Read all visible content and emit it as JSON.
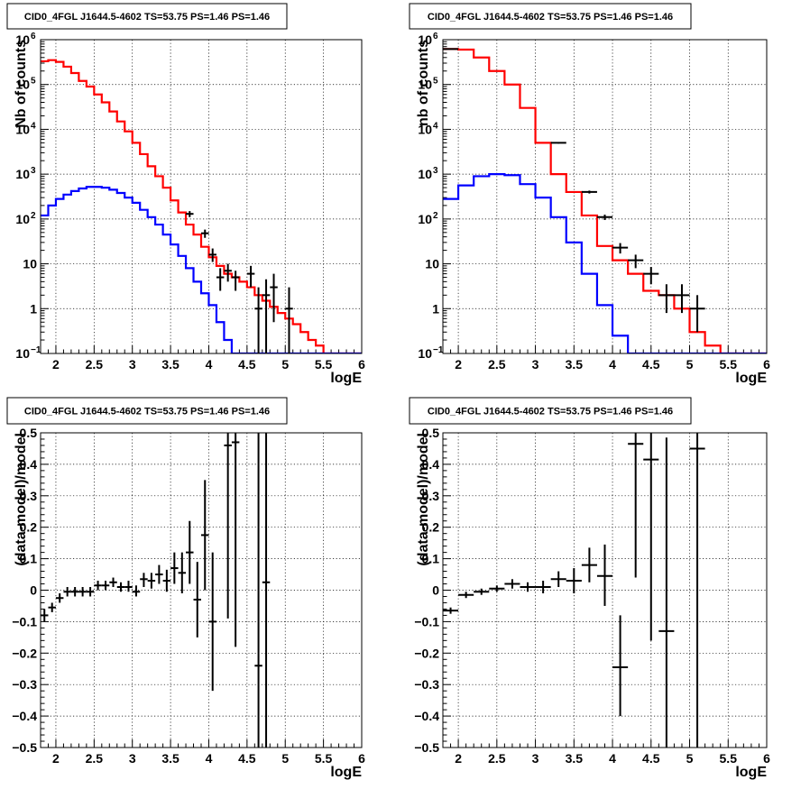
{
  "chart_data": [
    {
      "id": "p1",
      "type": "histogram",
      "title": "CID0_4FGL J1644.5-4602 TS=53.75 PS=1.46 PS=1.46",
      "xlabel": "logE",
      "ylabel": "Nb of counts",
      "xlim": [
        1.8,
        6.0
      ],
      "ylim": [
        0.1,
        1000000
      ],
      "yscale": "log",
      "grid": true,
      "x_ticks": [
        2,
        2.5,
        3,
        3.5,
        4,
        4.5,
        5,
        5.5,
        6
      ],
      "x_tick_labels": [
        "2",
        "2.5",
        "3",
        "3.5",
        "4",
        "4.5",
        "5",
        "5.5",
        "6"
      ],
      "y_ticks": [
        0.1,
        1,
        10,
        100,
        1000,
        10000,
        100000,
        1000000
      ],
      "y_tick_labels": [
        {
          "base": "10",
          "exp": "−1"
        },
        {
          "base": "1",
          "exp": ""
        },
        {
          "base": "10",
          "exp": ""
        },
        {
          "base": "10",
          "exp": "2"
        },
        {
          "base": "10",
          "exp": "3"
        },
        {
          "base": "10",
          "exp": "4"
        },
        {
          "base": "10",
          "exp": "5"
        },
        {
          "base": "10",
          "exp": "6"
        }
      ],
      "bin_edges": [
        1.8,
        1.9,
        2.0,
        2.1,
        2.2,
        2.3,
        2.4,
        2.5,
        2.6,
        2.7,
        2.8,
        2.9,
        3.0,
        3.1,
        3.2,
        3.3,
        3.4,
        3.5,
        3.6,
        3.7,
        3.8,
        3.9,
        4.0,
        4.1,
        4.2,
        4.3,
        4.4,
        4.5,
        4.6,
        4.7,
        4.8,
        4.9,
        5.0,
        5.1,
        5.2,
        5.3,
        5.4,
        5.5,
        5.6,
        5.7,
        5.8,
        5.9,
        6.0
      ],
      "series": [
        {
          "name": "",
          "color": "#ff0000",
          "kind": "step",
          "values": [
            330000,
            350000,
            320000,
            250000,
            180000,
            120000,
            90000,
            60000,
            40000,
            25000,
            15000,
            9000,
            5000,
            2800,
            1500,
            900,
            500,
            260,
            140,
            75,
            45,
            24,
            14,
            9,
            6,
            5,
            4,
            3,
            2,
            1.5,
            1.1,
            0.8,
            0.6,
            0.45,
            0.3,
            0.2,
            0.15,
            0.1,
            0.1,
            0.1,
            0.1,
            0.1
          ]
        },
        {
          "name": "",
          "color": "#0000ff",
          "kind": "step",
          "values": [
            120,
            200,
            280,
            350,
            420,
            480,
            520,
            520,
            500,
            450,
            380,
            300,
            230,
            160,
            110,
            75,
            45,
            27,
            15,
            8,
            4,
            2.2,
            1.2,
            0.5,
            0.2,
            0.1,
            0.1,
            0.1,
            0.1,
            0.1,
            0.1,
            0.1,
            0.1,
            0.1,
            0.1,
            0.1,
            0.1,
            0.1,
            0.1,
            0.1,
            0.1,
            0.1
          ]
        }
      ],
      "points": [
        {
          "x": 3.75,
          "y": 130,
          "dx": 0.05,
          "yl": 110,
          "yh": 150
        },
        {
          "x": 3.95,
          "y": 48,
          "dx": 0.05,
          "yl": 38,
          "yh": 58
        },
        {
          "x": 4.05,
          "y": 16,
          "dx": 0.05,
          "yl": 11,
          "yh": 22
        },
        {
          "x": 4.15,
          "y": 5,
          "dx": 0.05,
          "yl": 2.5,
          "yh": 8
        },
        {
          "x": 4.25,
          "y": 7,
          "dx": 0.05,
          "yl": 4,
          "yh": 10
        },
        {
          "x": 4.35,
          "y": 5,
          "dx": 0.05,
          "yl": 2.5,
          "yh": 7
        },
        {
          "x": 4.55,
          "y": 6,
          "dx": 0.05,
          "yl": 3,
          "yh": 9
        },
        {
          "x": 4.65,
          "y": 1,
          "dx": 0.05,
          "yl": 0.1,
          "yh": 3
        },
        {
          "x": 4.75,
          "y": 2,
          "dx": 0.05,
          "yl": 0.1,
          "yh": 4.5
        },
        {
          "x": 4.85,
          "y": 3,
          "dx": 0.05,
          "yl": 0.5,
          "yh": 6
        },
        {
          "x": 5.05,
          "y": 1,
          "dx": 0.05,
          "yl": 0.1,
          "yh": 3
        }
      ]
    },
    {
      "id": "p2",
      "type": "histogram",
      "title": "CID0_4FGL J1644.5-4602 TS=53.75 PS=1.46 PS=1.46",
      "xlabel": "logE",
      "ylabel": "nb of counts",
      "xlim": [
        1.8,
        6.0
      ],
      "ylim": [
        0.1,
        1000000
      ],
      "yscale": "log",
      "grid": true,
      "x_ticks": [
        2,
        2.5,
        3,
        3.5,
        4,
        4.5,
        5,
        5.5,
        6
      ],
      "x_tick_labels": [
        "2",
        "2.5",
        "3",
        "3.5",
        "4",
        "4.5",
        "5",
        "5.5",
        "6"
      ],
      "y_ticks": [
        0.1,
        1,
        10,
        100,
        1000,
        10000,
        100000,
        1000000
      ],
      "y_tick_labels": [
        {
          "base": "10",
          "exp": "−1"
        },
        {
          "base": "1",
          "exp": ""
        },
        {
          "base": "10",
          "exp": ""
        },
        {
          "base": "10",
          "exp": "2"
        },
        {
          "base": "10",
          "exp": "3"
        },
        {
          "base": "10",
          "exp": "4"
        },
        {
          "base": "10",
          "exp": "5"
        },
        {
          "base": "10",
          "exp": "6"
        }
      ],
      "bin_edges": [
        1.8,
        2.0,
        2.2,
        2.4,
        2.6,
        2.8,
        3.0,
        3.2,
        3.4,
        3.6,
        3.8,
        4.0,
        4.2,
        4.4,
        4.6,
        4.8,
        5.0,
        5.2,
        5.4,
        5.6,
        5.8,
        6.0
      ],
      "series": [
        {
          "name": "",
          "color": "#ff0000",
          "kind": "step",
          "values": [
            620000,
            600000,
            400000,
            200000,
            100000,
            30000,
            5000,
            1000,
            400,
            120,
            25,
            12,
            6,
            2.5,
            2,
            1,
            0.3,
            0.15,
            0.1,
            0.1,
            0.1
          ]
        },
        {
          "name": "",
          "color": "#0000ff",
          "kind": "step",
          "values": [
            280,
            560,
            900,
            1000,
            950,
            600,
            300,
            110,
            30,
            6,
            1.2,
            0.25,
            0.1,
            0.1,
            0.1,
            0.1,
            0.1,
            0.1,
            0.1,
            0.1,
            0.1
          ]
        }
      ],
      "points": [
        {
          "x": 1.9,
          "y": 620000,
          "dx": 0.1,
          "yl": 610000,
          "yh": 630000
        },
        {
          "x": 3.3,
          "y": 5000,
          "dx": 0.1,
          "yl": 4800,
          "yh": 5200
        },
        {
          "x": 3.7,
          "y": 400,
          "dx": 0.1,
          "yl": 370,
          "yh": 430
        },
        {
          "x": 3.9,
          "y": 110,
          "dx": 0.1,
          "yl": 95,
          "yh": 125
        },
        {
          "x": 4.1,
          "y": 23,
          "dx": 0.1,
          "yl": 17,
          "yh": 29
        },
        {
          "x": 4.3,
          "y": 12,
          "dx": 0.1,
          "yl": 8,
          "yh": 16
        },
        {
          "x": 4.5,
          "y": 6,
          "dx": 0.1,
          "yl": 3.5,
          "yh": 8.5
        },
        {
          "x": 4.7,
          "y": 2,
          "dx": 0.1,
          "yl": 0.8,
          "yh": 3.5
        },
        {
          "x": 4.9,
          "y": 2,
          "dx": 0.1,
          "yl": 0.8,
          "yh": 3.5
        },
        {
          "x": 5.1,
          "y": 1,
          "dx": 0.1,
          "yl": 0.3,
          "yh": 2
        }
      ]
    },
    {
      "id": "p3",
      "type": "scatter",
      "title": "CID0_4FGL J1644.5-4602 TS=53.75 PS=1.46 PS=1.46",
      "xlabel": "logE",
      "ylabel": "(data-model)/model",
      "xlim": [
        1.8,
        6.0
      ],
      "ylim": [
        -0.5,
        0.5
      ],
      "yscale": "linear",
      "grid": true,
      "x_ticks": [
        2,
        2.5,
        3,
        3.5,
        4,
        4.5,
        5,
        5.5,
        6
      ],
      "x_tick_labels": [
        "2",
        "2.5",
        "3",
        "3.5",
        "4",
        "4.5",
        "5",
        "5.5",
        "6"
      ],
      "y_ticks": [
        -0.5,
        -0.4,
        -0.3,
        -0.2,
        -0.1,
        0,
        0.1,
        0.2,
        0.3,
        0.4,
        0.5
      ],
      "y_tick_labels": [
        "−0.5",
        "−0.4",
        "−0.3",
        "−0.2",
        "−0.1",
        "0",
        "0.1",
        "0.2",
        "0.3",
        "0.4",
        "0.5"
      ],
      "points": [
        {
          "x": 1.85,
          "y": -0.08,
          "dx": 0.05,
          "yl": -0.1,
          "yh": -0.06
        },
        {
          "x": 1.95,
          "y": -0.055,
          "dx": 0.05,
          "yl": -0.07,
          "yh": -0.04
        },
        {
          "x": 2.05,
          "y": -0.025,
          "dx": 0.05,
          "yl": -0.04,
          "yh": -0.01
        },
        {
          "x": 2.15,
          "y": -0.005,
          "dx": 0.05,
          "yl": -0.02,
          "yh": 0.01
        },
        {
          "x": 2.25,
          "y": -0.005,
          "dx": 0.05,
          "yl": -0.02,
          "yh": 0.01
        },
        {
          "x": 2.35,
          "y": -0.005,
          "dx": 0.05,
          "yl": -0.02,
          "yh": 0.01
        },
        {
          "x": 2.45,
          "y": -0.005,
          "dx": 0.05,
          "yl": -0.02,
          "yh": 0.01
        },
        {
          "x": 2.55,
          "y": 0.015,
          "dx": 0.05,
          "yl": 0.0,
          "yh": 0.03
        },
        {
          "x": 2.65,
          "y": 0.015,
          "dx": 0.05,
          "yl": 0.0,
          "yh": 0.03
        },
        {
          "x": 2.75,
          "y": 0.025,
          "dx": 0.05,
          "yl": 0.01,
          "yh": 0.04
        },
        {
          "x": 2.85,
          "y": 0.01,
          "dx": 0.05,
          "yl": -0.005,
          "yh": 0.025
        },
        {
          "x": 2.95,
          "y": 0.01,
          "dx": 0.05,
          "yl": -0.005,
          "yh": 0.03
        },
        {
          "x": 3.05,
          "y": -0.005,
          "dx": 0.05,
          "yl": -0.02,
          "yh": 0.015
        },
        {
          "x": 3.15,
          "y": 0.035,
          "dx": 0.05,
          "yl": 0.01,
          "yh": 0.055
        },
        {
          "x": 3.25,
          "y": 0.03,
          "dx": 0.05,
          "yl": 0.005,
          "yh": 0.055
        },
        {
          "x": 3.35,
          "y": 0.05,
          "dx": 0.05,
          "yl": 0.02,
          "yh": 0.08
        },
        {
          "x": 3.45,
          "y": 0.03,
          "dx": 0.05,
          "yl": -0.005,
          "yh": 0.065
        },
        {
          "x": 3.55,
          "y": 0.07,
          "dx": 0.05,
          "yl": 0.02,
          "yh": 0.12
        },
        {
          "x": 3.65,
          "y": 0.055,
          "dx": 0.05,
          "yl": -0.01,
          "yh": 0.12
        },
        {
          "x": 3.75,
          "y": 0.12,
          "dx": 0.05,
          "yl": 0.02,
          "yh": 0.22
        },
        {
          "x": 3.85,
          "y": -0.03,
          "dx": 0.05,
          "yl": -0.15,
          "yh": 0.09
        },
        {
          "x": 3.95,
          "y": 0.175,
          "dx": 0.05,
          "yl": 0.0,
          "yh": 0.35
        },
        {
          "x": 4.05,
          "y": -0.1,
          "dx": 0.05,
          "yl": -0.32,
          "yh": 0.12
        },
        {
          "x": 4.25,
          "y": 0.46,
          "dx": 0.05,
          "yl": -0.09,
          "yh": 0.5
        },
        {
          "x": 4.35,
          "y": 0.47,
          "dx": 0.05,
          "yl": -0.18,
          "yh": 0.5
        },
        {
          "x": 4.65,
          "y": -0.24,
          "dx": 0.05,
          "yl": -0.5,
          "yh": 0.5
        },
        {
          "x": 4.75,
          "y": 0.025,
          "dx": 0.05,
          "yl": -0.5,
          "yh": 0.5
        }
      ]
    },
    {
      "id": "p4",
      "type": "scatter",
      "title": "CID0_4FGL J1644.5-4602 TS=53.75 PS=1.46 PS=1.46",
      "xlabel": "logE",
      "ylabel": "(data-model)/model",
      "xlim": [
        1.8,
        6.0
      ],
      "ylim": [
        -0.5,
        0.5
      ],
      "yscale": "linear",
      "grid": true,
      "x_ticks": [
        2,
        2.5,
        3,
        3.5,
        4,
        4.5,
        5,
        5.5,
        6
      ],
      "x_tick_labels": [
        "2",
        "2.5",
        "3",
        "3.5",
        "4",
        "4.5",
        "5",
        "5.5",
        "6"
      ],
      "y_ticks": [
        -0.5,
        -0.4,
        -0.3,
        -0.2,
        -0.1,
        0,
        0.1,
        0.2,
        0.3,
        0.4,
        0.5
      ],
      "y_tick_labels": [
        "−0.5",
        "−0.4",
        "−0.3",
        "−0.2",
        "−0.1",
        "0",
        "0.1",
        "0.2",
        "0.3",
        "0.4",
        "0.5"
      ],
      "points": [
        {
          "x": 1.9,
          "y": -0.065,
          "dx": 0.1,
          "yl": -0.075,
          "yh": -0.055
        },
        {
          "x": 2.1,
          "y": -0.015,
          "dx": 0.1,
          "yl": -0.025,
          "yh": -0.005
        },
        {
          "x": 2.3,
          "y": -0.005,
          "dx": 0.1,
          "yl": -0.015,
          "yh": 0.005
        },
        {
          "x": 2.5,
          "y": 0.005,
          "dx": 0.1,
          "yl": -0.005,
          "yh": 0.015
        },
        {
          "x": 2.7,
          "y": 0.02,
          "dx": 0.1,
          "yl": 0.005,
          "yh": 0.035
        },
        {
          "x": 2.9,
          "y": 0.01,
          "dx": 0.1,
          "yl": -0.005,
          "yh": 0.025
        },
        {
          "x": 3.1,
          "y": 0.01,
          "dx": 0.1,
          "yl": -0.01,
          "yh": 0.03
        },
        {
          "x": 3.3,
          "y": 0.035,
          "dx": 0.1,
          "yl": 0.01,
          "yh": 0.06
        },
        {
          "x": 3.5,
          "y": 0.03,
          "dx": 0.1,
          "yl": -0.01,
          "yh": 0.07
        },
        {
          "x": 3.7,
          "y": 0.08,
          "dx": 0.1,
          "yl": 0.025,
          "yh": 0.135
        },
        {
          "x": 3.9,
          "y": 0.045,
          "dx": 0.1,
          "yl": -0.05,
          "yh": 0.145
        },
        {
          "x": 4.1,
          "y": -0.245,
          "dx": 0.1,
          "yl": -0.4,
          "yh": -0.08
        },
        {
          "x": 4.3,
          "y": 0.465,
          "dx": 0.1,
          "yl": 0.04,
          "yh": 0.5
        },
        {
          "x": 4.5,
          "y": 0.415,
          "dx": 0.1,
          "yl": -0.16,
          "yh": 0.5
        },
        {
          "x": 4.7,
          "y": -0.13,
          "dx": 0.1,
          "yl": -0.5,
          "yh": 0.485
        },
        {
          "x": 5.1,
          "y": 0.45,
          "dx": 0.1,
          "yl": -0.5,
          "yh": 0.5
        }
      ]
    }
  ]
}
